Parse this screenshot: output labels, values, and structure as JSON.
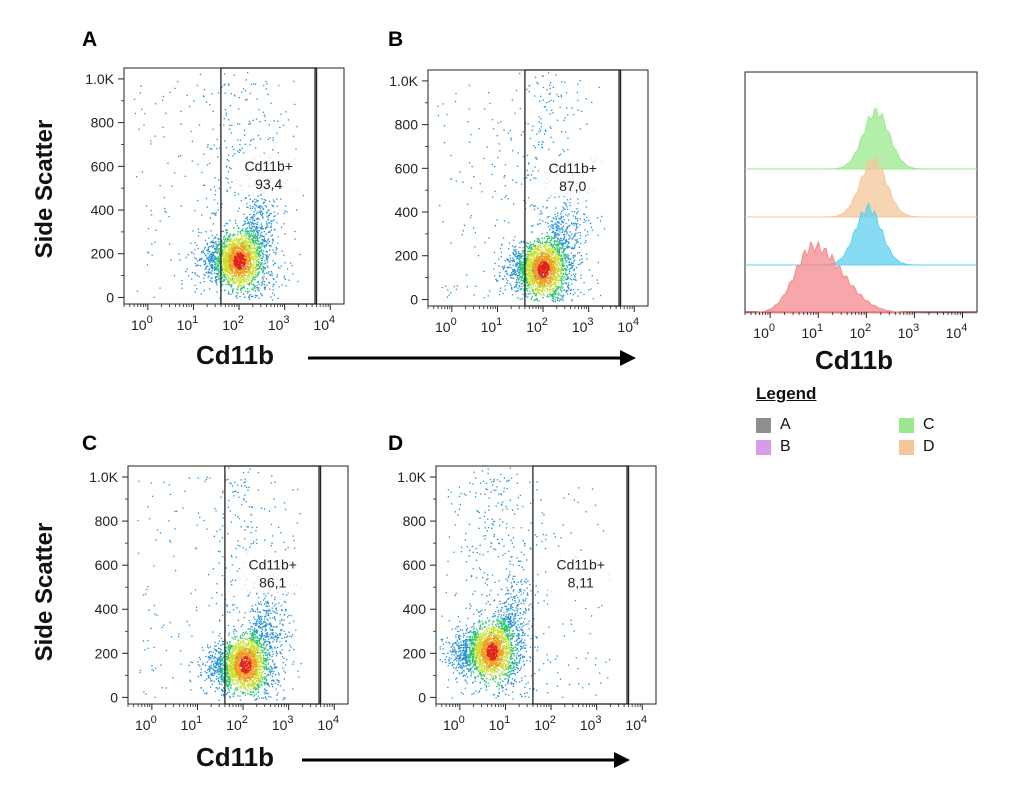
{
  "figure": {
    "panels": [
      {
        "letter": "A"
      },
      {
        "letter": "B"
      },
      {
        "letter": "C"
      },
      {
        "letter": "D"
      }
    ],
    "scatter_ylabel": "Side Scatter",
    "xlabel": "Cd11b",
    "histogram_xlabel": "Cd11b"
  },
  "legend": {
    "title": "Legend",
    "items": [
      {
        "label": "A",
        "color": "#8f8f8f"
      },
      {
        "label": "B",
        "color": "#d89be8"
      },
      {
        "label": "C",
        "color": "#9be98d"
      },
      {
        "label": "D",
        "color": "#f4c79a"
      }
    ]
  },
  "chart_data": [
    {
      "type": "scatter",
      "panel": "A",
      "ylabel": "Side Scatter",
      "xlabel": "Cd11b",
      "x_scale": "log",
      "xlim": [
        0.3,
        20000
      ],
      "ylim": [
        -30,
        1050
      ],
      "y_ticks": [
        "0",
        "200",
        "400",
        "600",
        "800",
        "1.0K"
      ],
      "x_ticks": [
        "10^0",
        "10^1",
        "10^2",
        "10^3",
        "10^4"
      ],
      "gate": {
        "label": "Cd11b+",
        "value": "93,4",
        "x_range": [
          40,
          5000
        ]
      },
      "population_center": {
        "x": 100,
        "y": 170
      }
    },
    {
      "type": "scatter",
      "panel": "B",
      "ylabel": "Side Scatter",
      "xlabel": "Cd11b",
      "x_scale": "log",
      "xlim": [
        0.3,
        20000
      ],
      "ylim": [
        -30,
        1050
      ],
      "y_ticks": [
        "0",
        "200",
        "400",
        "600",
        "800",
        "1.0K"
      ],
      "x_ticks": [
        "10^0",
        "10^1",
        "10^2",
        "10^3",
        "10^4"
      ],
      "gate": {
        "label": "Cd11b+",
        "value": "87,0",
        "x_range": [
          40,
          5000
        ]
      },
      "population_center": {
        "x": 100,
        "y": 140
      }
    },
    {
      "type": "scatter",
      "panel": "C",
      "ylabel": "Side Scatter",
      "xlabel": "Cd11b",
      "x_scale": "log",
      "xlim": [
        0.3,
        20000
      ],
      "ylim": [
        -30,
        1050
      ],
      "y_ticks": [
        "0",
        "200",
        "400",
        "600",
        "800",
        "1.0K"
      ],
      "x_ticks": [
        "10^0",
        "10^1",
        "10^2",
        "10^3",
        "10^4"
      ],
      "gate": {
        "label": "Cd11b+",
        "value": "86,1",
        "x_range": [
          40,
          5000
        ]
      },
      "population_center": {
        "x": 110,
        "y": 150
      }
    },
    {
      "type": "scatter",
      "panel": "D",
      "ylabel": "Side Scatter",
      "xlabel": "Cd11b",
      "x_scale": "log",
      "xlim": [
        0.3,
        20000
      ],
      "ylim": [
        -30,
        1050
      ],
      "y_ticks": [
        "0",
        "200",
        "400",
        "600",
        "800",
        "1.0K"
      ],
      "x_ticks": [
        "10^0",
        "10^1",
        "10^2",
        "10^3",
        "10^4"
      ],
      "gate": {
        "label": "Cd11b+",
        "value": "8,11",
        "x_range": [
          40,
          5000
        ]
      },
      "population_center": {
        "x": 5,
        "y": 210
      }
    },
    {
      "type": "area",
      "panel": "histogram",
      "xlabel": "Cd11b",
      "x_scale": "log",
      "xlim": [
        0.3,
        20000
      ],
      "x_ticks": [
        "10^0",
        "10^1",
        "10^2",
        "10^3",
        "10^4"
      ],
      "series": [
        {
          "color": "#9be98d",
          "peak_x": 160
        },
        {
          "color": "#f4c79a",
          "peak_x": 140
        },
        {
          "color": "#5fd0ef",
          "peak_x": 110
        },
        {
          "color": "#f48a8c",
          "peak_x": 8
        }
      ]
    }
  ]
}
